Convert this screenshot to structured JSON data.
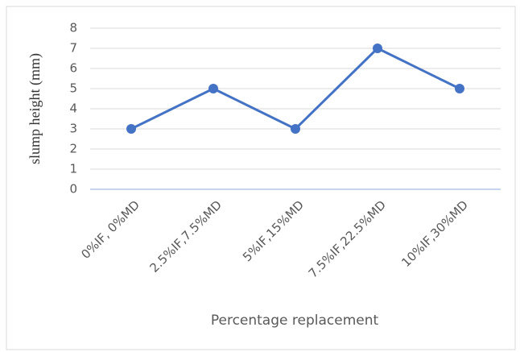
{
  "chart_data": {
    "type": "line",
    "categories": [
      "0%IF, 0%MD",
      "2.5%IF,7.5%MD",
      "5%IF,15%MD",
      "7.5%IF,22.5%MD",
      "10%IF,30%MD"
    ],
    "series": [
      {
        "name": "slump height (mm)",
        "color": "#4472c4",
        "values": [
          3,
          5,
          3,
          7,
          5
        ]
      }
    ],
    "y_label": "slump height (mm)",
    "x_label": "Percentage replacement",
    "ylim": [
      0,
      8
    ],
    "yticks": [
      0,
      1,
      2,
      3,
      4,
      5,
      6,
      7,
      8
    ],
    "grid": true
  }
}
